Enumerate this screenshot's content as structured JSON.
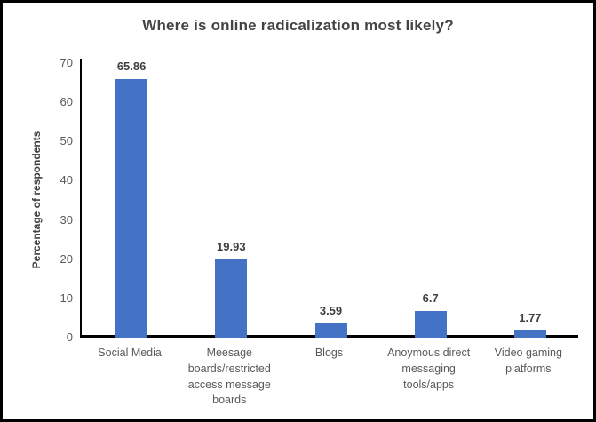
{
  "chart_data": {
    "type": "bar",
    "title": "Where is online radicalization most likely?",
    "ylabel": "Percentage of respondents",
    "xlabel": "",
    "categories": [
      "Social Media",
      "Meesage boards/restricted access message boards",
      "Blogs",
      "Anoymous direct messaging tools/apps",
      "Video gaming platforms"
    ],
    "values": [
      65.86,
      19.93,
      3.59,
      6.7,
      1.77
    ],
    "data_labels": [
      "65.86",
      "19.93",
      "3.59",
      "6.7",
      "1.77"
    ],
    "ylim": [
      0,
      70
    ],
    "yticks": [
      0,
      10,
      20,
      30,
      40,
      50,
      60,
      70
    ],
    "grid": false,
    "legend": false,
    "colors": {
      "bar": "#4472C4",
      "axis": "#000000",
      "title_text": "#444444",
      "data_label_text": "#404040",
      "tick_text": "#595959",
      "frame_border": "#000000",
      "background": "#FFFFFF"
    }
  }
}
